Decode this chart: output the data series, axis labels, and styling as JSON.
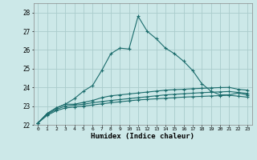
{
  "xlabel": "Humidex (Indice chaleur)",
  "background_color": "#cce8e8",
  "grid_color": "#aacccc",
  "line_color": "#1a6b6b",
  "xlim": [
    -0.5,
    23.5
  ],
  "ylim": [
    22,
    28.5
  ],
  "yticks": [
    22,
    23,
    24,
    25,
    26,
    27,
    28
  ],
  "xtick_labels": [
    "0",
    "1",
    "2",
    "3",
    "4",
    "5",
    "6",
    "7",
    "8",
    "9",
    "10",
    "11",
    "12",
    "13",
    "14",
    "15",
    "16",
    "17",
    "18",
    "19",
    "20",
    "21",
    "22",
    "23"
  ],
  "series1": [
    22.1,
    22.6,
    22.9,
    23.1,
    23.4,
    23.8,
    24.1,
    24.9,
    25.8,
    26.1,
    26.05,
    27.8,
    27.0,
    26.6,
    26.1,
    25.8,
    25.4,
    24.9,
    24.2,
    23.8,
    23.6,
    23.6,
    23.7,
    23.6
  ],
  "series2": [
    22.1,
    22.6,
    22.9,
    23.1,
    23.1,
    23.2,
    23.3,
    23.45,
    23.55,
    23.6,
    23.65,
    23.7,
    23.75,
    23.8,
    23.85,
    23.88,
    23.9,
    23.93,
    23.95,
    23.97,
    23.99,
    24.0,
    23.9,
    23.85
  ],
  "series3": [
    22.1,
    22.55,
    22.82,
    23.0,
    23.05,
    23.1,
    23.18,
    23.24,
    23.3,
    23.35,
    23.4,
    23.45,
    23.5,
    23.55,
    23.6,
    23.63,
    23.66,
    23.69,
    23.72,
    23.74,
    23.76,
    23.78,
    23.73,
    23.68
  ],
  "series4": [
    22.1,
    22.5,
    22.75,
    22.9,
    22.95,
    23.0,
    23.06,
    23.12,
    23.18,
    23.23,
    23.28,
    23.33,
    23.36,
    23.39,
    23.42,
    23.45,
    23.48,
    23.5,
    23.52,
    23.54,
    23.56,
    23.58,
    23.53,
    23.48
  ]
}
